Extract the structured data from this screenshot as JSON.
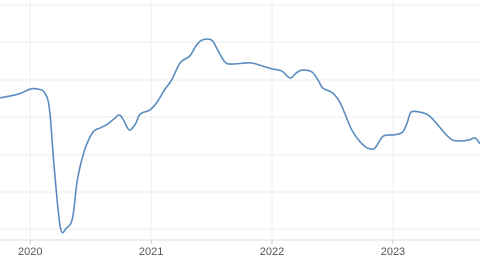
{
  "chart_data": {
    "type": "line",
    "x": [
      2019.75,
      2019.87,
      2019.93,
      2020.0,
      2020.06,
      2020.12,
      2020.16,
      2020.2,
      2020.25,
      2020.3,
      2020.35,
      2020.39,
      2020.45,
      2020.52,
      2020.58,
      2020.64,
      2020.7,
      2020.74,
      2020.78,
      2020.82,
      2020.87,
      2020.91,
      2020.99,
      2021.05,
      2021.11,
      2021.17,
      2021.24,
      2021.32,
      2021.37,
      2021.42,
      2021.5,
      2021.55,
      2021.61,
      2021.67,
      2021.82,
      2021.92,
      2022.0,
      2022.08,
      2022.15,
      2022.2,
      2022.25,
      2022.33,
      2022.38,
      2022.42,
      2022.5,
      2022.56,
      2022.61,
      2022.66,
      2022.73,
      2022.79,
      2022.85,
      2022.92,
      2023.01,
      2023.08,
      2023.12,
      2023.15,
      2023.22,
      2023.29,
      2023.35,
      2023.42,
      2023.49,
      2023.57,
      2023.63,
      2023.68,
      2023.72
    ],
    "values": [
      59.2,
      60.4,
      61.3,
      62.9,
      62.9,
      61.3,
      54.2,
      29.2,
      5.0,
      5.0,
      9.2,
      25.0,
      37.5,
      45.0,
      46.7,
      48.3,
      50.8,
      52.1,
      49.2,
      45.8,
      48.3,
      52.5,
      54.2,
      57.5,
      62.5,
      66.7,
      73.8,
      76.7,
      80.8,
      83.3,
      83.3,
      79.2,
      74.2,
      73.3,
      73.8,
      72.5,
      71.3,
      70.4,
      67.5,
      69.6,
      70.8,
      70.0,
      66.7,
      63.3,
      61.3,
      57.5,
      51.7,
      45.8,
      40.8,
      38.3,
      38.3,
      43.3,
      43.8,
      45.0,
      49.2,
      53.3,
      53.3,
      52.1,
      49.2,
      45.0,
      41.7,
      41.3,
      41.7,
      42.5,
      40.0
    ],
    "color": "#5b8cc0",
    "xlim": [
      2019.75,
      2023.72
    ],
    "xticks": [
      2020,
      2021,
      2022,
      2023
    ],
    "ylim": [
      0,
      100
    ],
    "grid": true
  }
}
